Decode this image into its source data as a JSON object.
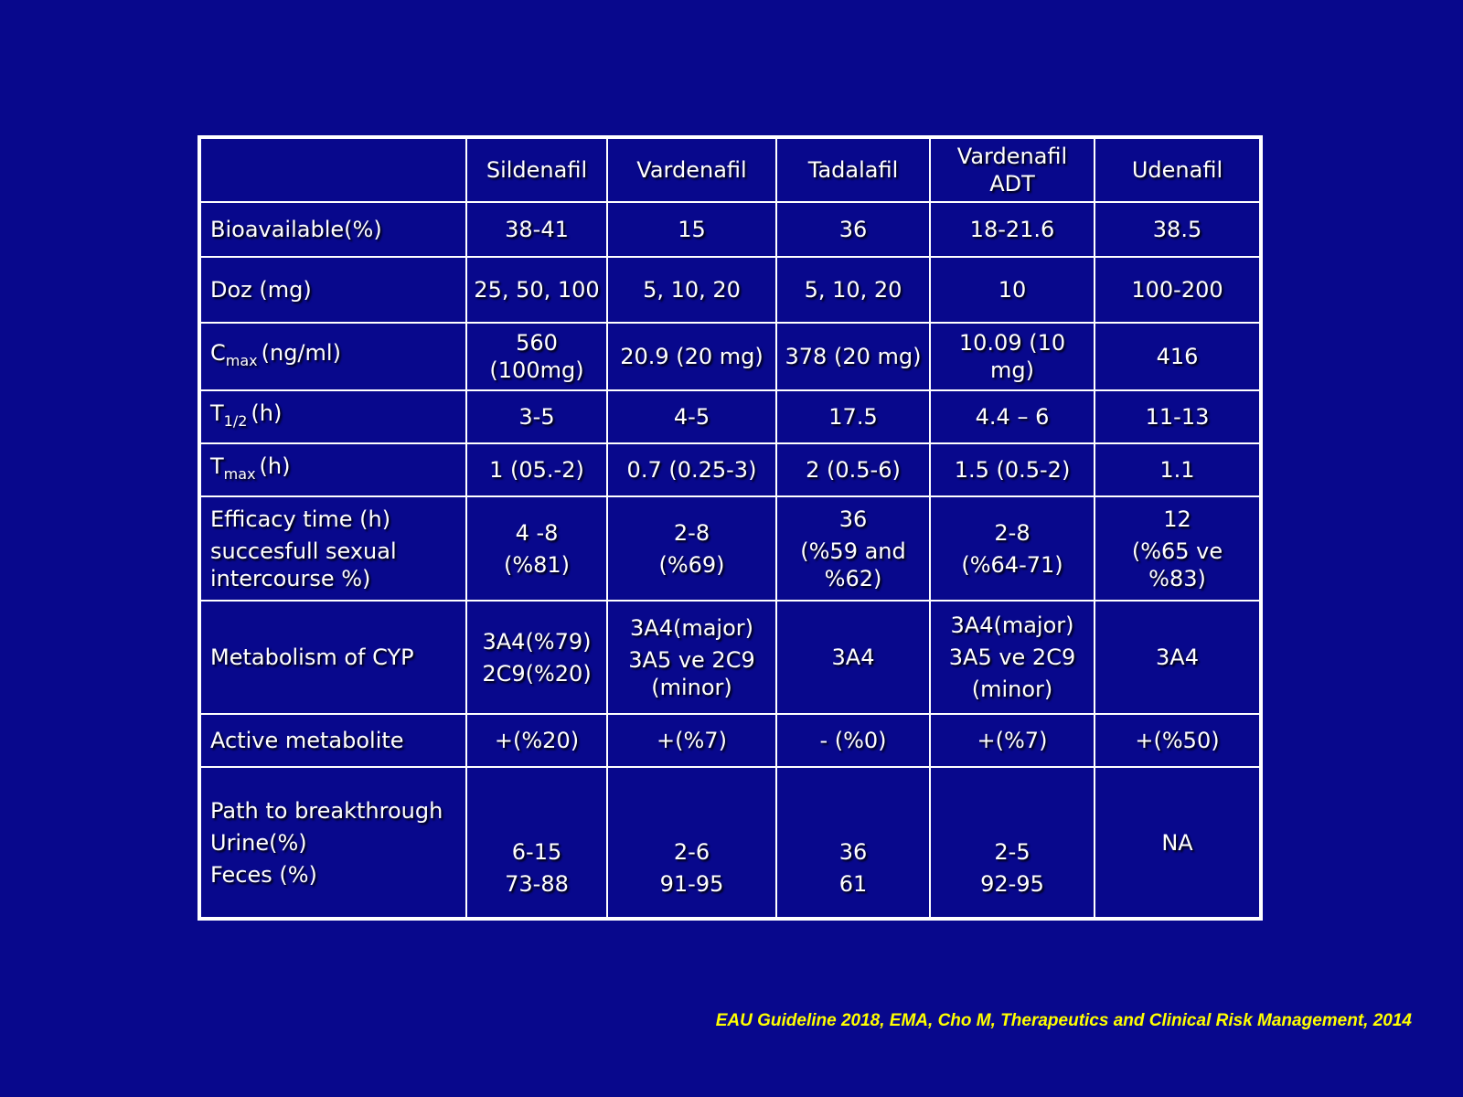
{
  "table": {
    "columns": [
      "Sildenafil",
      "Vardenafil",
      "Tadalafil",
      "Vardenafil ADT",
      "Udenafil"
    ],
    "rows": [
      {
        "label": [
          "Bioavailable(%)"
        ],
        "cells": [
          [
            "38-41"
          ],
          [
            "15"
          ],
          [
            "36"
          ],
          [
            "18-21.6"
          ],
          [
            "38.5"
          ]
        ]
      },
      {
        "label": [
          "Doz (mg)"
        ],
        "cells": [
          [
            "25, 50, 100"
          ],
          [
            "5, 10, 20"
          ],
          [
            "5, 10, 20"
          ],
          [
            "10"
          ],
          [
            "100-200"
          ]
        ]
      },
      {
        "label": {
          "base": "C",
          "sub": "max",
          "unit": "(ng/ml)"
        },
        "cells": [
          [
            "560 (100mg)"
          ],
          [
            "20.9 (20 mg)"
          ],
          [
            "378 (20 mg)"
          ],
          [
            "10.09 (10 mg)"
          ],
          [
            "416"
          ]
        ]
      },
      {
        "label": {
          "base": "T",
          "sub": "1/2",
          "unit": "(h)"
        },
        "cells": [
          [
            "3-5"
          ],
          [
            "4-5"
          ],
          [
            "17.5"
          ],
          [
            "4.4 – 6"
          ],
          [
            "11-13"
          ]
        ]
      },
      {
        "label": {
          "base": "T",
          "sub": "max",
          "unit": "(h)"
        },
        "cells": [
          [
            "1 (05.-2)"
          ],
          [
            "0.7 (0.25-3)"
          ],
          [
            "2 (0.5-6)"
          ],
          [
            "1.5 (0.5-2)"
          ],
          [
            "1.1"
          ]
        ]
      },
      {
        "label": [
          "Efficacy time (h)",
          "succesfull sexual intercourse %)"
        ],
        "cells": [
          [
            "4 -8",
            "(%81)"
          ],
          [
            "2-8",
            "(%69)"
          ],
          [
            "36",
            "(%59 and %62)"
          ],
          [
            "2-8",
            "(%64-71)"
          ],
          [
            "12",
            "(%65 ve %83)"
          ]
        ]
      },
      {
        "label": [
          "Metabolism of CYP"
        ],
        "cells": [
          [
            "3A4(%79)",
            "2C9(%20)"
          ],
          [
            "3A4(major)",
            "3A5 ve 2C9 (minor)"
          ],
          [
            "3A4"
          ],
          [
            "3A4(major)",
            "3A5 ve 2C9",
            "(minor)"
          ],
          [
            "3A4"
          ]
        ]
      },
      {
        "label": [
          "Active metabolite"
        ],
        "cells": [
          [
            "+(%20)"
          ],
          [
            "+(%7)"
          ],
          [
            "- (%0)"
          ],
          [
            "+(%7)"
          ],
          [
            "+(%50)"
          ]
        ]
      },
      {
        "label": [
          "Path to breakthrough",
          "Urine(%)",
          "Feces (%)"
        ],
        "cells": [
          [
            "6-15",
            "73-88"
          ],
          [
            "2-6",
            "91-95"
          ],
          [
            "36",
            "61"
          ],
          [
            "2-5",
            "92-95"
          ],
          [
            "NA"
          ]
        ]
      }
    ]
  },
  "citation": "EAU Guideline 2018, EMA, Cho M, Therapeutics and Clinical Risk Management, 2014"
}
